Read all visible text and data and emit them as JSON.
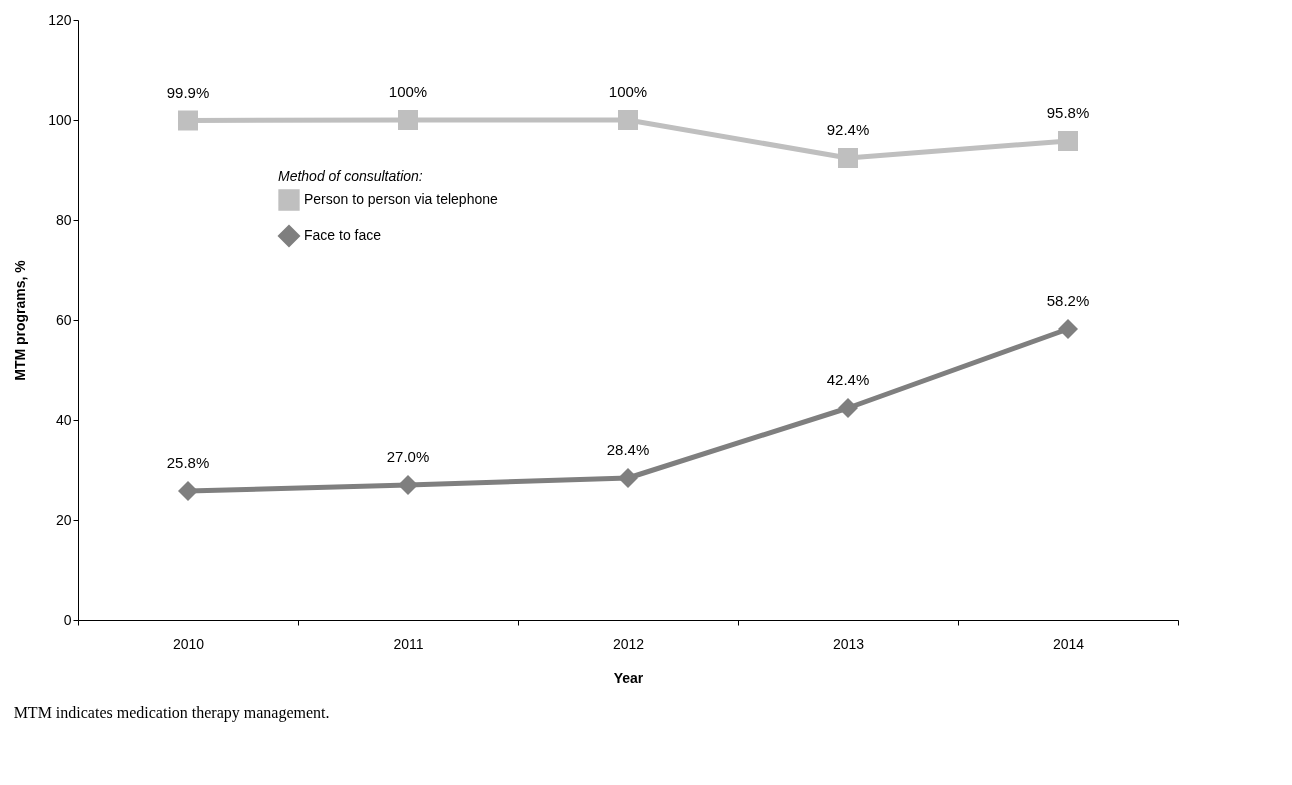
{
  "chart_data": {
    "type": "line",
    "xlabel": "Year",
    "ylabel": "MTM programs, %",
    "legend_title": "Method of consultation:",
    "legend": "left",
    "grid": false,
    "categories": [
      "2010",
      "2011",
      "2012",
      "2013",
      "2014"
    ],
    "ylim": [
      0,
      120
    ],
    "yticks": [
      0,
      20,
      40,
      60,
      80,
      100,
      120
    ],
    "series": [
      {
        "name": "Person to person via telephone",
        "color": "#bfbfbf",
        "marker": "square",
        "values": [
          99.9,
          100,
          100,
          92.4,
          95.8
        ],
        "value_labels": [
          "99.9%",
          "100%",
          "100%",
          "92.4%",
          "95.8%"
        ]
      },
      {
        "name": "Face to face",
        "color": "#7f7f7f",
        "marker": "diamond",
        "values": [
          25.8,
          27.0,
          28.4,
          42.4,
          58.2
        ],
        "value_labels": [
          "25.8%",
          "27.0%",
          "28.4%",
          "42.4%",
          "58.2%"
        ]
      }
    ],
    "annotations": [
      "MTM indicates medication therapy management."
    ]
  }
}
